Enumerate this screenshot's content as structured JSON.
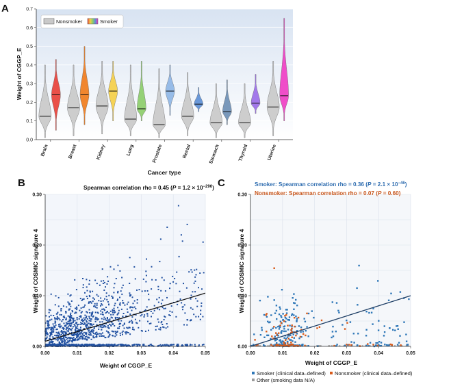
{
  "chart_data": [
    {
      "panel": "A",
      "type": "violin",
      "ylabel": "Weight of CGGP_E",
      "xlabel": "Cancer type",
      "ylim": [
        0,
        0.7
      ],
      "yticks": [
        "0.0",
        "0.1",
        "0.2",
        "0.3",
        "0.4",
        "0.5",
        "0.6",
        "0.7"
      ],
      "legend": {
        "nonsmoker": "Nonsmoker",
        "smoker": "Smoker"
      },
      "categories": [
        "Brain",
        "Breast",
        "Kidney",
        "Lung",
        "Prostate",
        "Rectal",
        "Stomach",
        "Thyroid",
        "Uterine"
      ],
      "series": [
        {
          "name": "Nonsmoker",
          "color": "#c9c9c9",
          "medians": [
            0.125,
            0.17,
            0.18,
            0.11,
            0.08,
            0.125,
            0.09,
            0.09,
            0.175
          ],
          "ranges": [
            [
              0.01,
              0.4
            ],
            [
              0.02,
              0.4
            ],
            [
              0.03,
              0.42
            ],
            [
              0.02,
              0.4
            ],
            [
              0.01,
              0.38
            ],
            [
              0.02,
              0.36
            ],
            [
              0.01,
              0.3
            ],
            [
              0.01,
              0.3
            ],
            [
              0.02,
              0.42
            ]
          ]
        },
        {
          "name": "Smoker",
          "colors": [
            "#e8413a",
            "#f07c1c",
            "#f5cf48",
            "#8ccd6a",
            "#8fb6e6",
            "#5d8fd6",
            "#6e8fb5",
            "#9b6de8",
            "#ef3fc4"
          ],
          "medians": [
            0.24,
            0.24,
            0.26,
            0.165,
            0.26,
            0.19,
            0.15,
            0.195,
            0.235
          ],
          "ranges": [
            [
              0.05,
              0.43
            ],
            [
              0.08,
              0.5
            ],
            [
              0.1,
              0.42
            ],
            [
              0.1,
              0.42
            ],
            [
              0.13,
              0.4
            ],
            [
              0.15,
              0.28
            ],
            [
              0.08,
              0.32
            ],
            [
              0.14,
              0.35
            ],
            [
              0.1,
              0.65
            ]
          ]
        }
      ]
    },
    {
      "panel": "B",
      "type": "scatter",
      "title": "Spearman correlation rho = 0.45 (P = 1.2 × 10⁻²⁹⁶)",
      "title_parts": {
        "rho": "Spearman correlation rho = 0.45 (",
        "p": "P",
        "val": " = 1.2 × 10",
        "exp": "−296",
        "close": ")"
      },
      "xlabel": "Weight of CGGP_E",
      "ylabel": "Weight of COSMIC signature 4",
      "xlim": [
        0,
        0.05
      ],
      "ylim": [
        0,
        0.3
      ],
      "xticks": [
        "0.00",
        "0.01",
        "0.02",
        "0.03",
        "0.04",
        "0.05"
      ],
      "yticks": [
        "0.00",
        "0.10",
        "0.20",
        "0.30"
      ],
      "color": "#1f4fa0",
      "n_points": 1400,
      "fit_line": {
        "x": [
          0,
          0.05
        ],
        "y": [
          0.01,
          0.105
        ]
      }
    },
    {
      "panel": "C",
      "type": "scatter",
      "smoker_label": {
        "text": "Smoker: Spearman correlation rho = 0.36 (",
        "p": "P",
        "val": " = 2.1 × 10",
        "exp": "−46",
        "close": ")"
      },
      "nonsmoker_label": {
        "text": "Nonsmoker: Spearman correlation rho = 0.07 (",
        "p": "P",
        "val": " = 0.60)"
      },
      "xlabel": "Weight of CGGP_E",
      "ylabel": "Weight of COSMIC signature 4",
      "xlim": [
        0,
        0.05
      ],
      "ylim": [
        0,
        0.3
      ],
      "xticks": [
        "0.00",
        "0.01",
        "0.02",
        "0.03",
        "0.04",
        "0.05"
      ],
      "yticks": [
        "0.00",
        "0.10",
        "0.20",
        "0.30"
      ],
      "fit_line": {
        "x": [
          0,
          0.05
        ],
        "y": [
          0.0,
          0.1
        ]
      },
      "legend": [
        {
          "label": "Smoker (clinical data–defined)",
          "color": "#2e77b8"
        },
        {
          "label": "Nonsmoker (clinical data–defined)",
          "color": "#d85a1a"
        },
        {
          "label": "Other (smoking data N/A)",
          "color": "#9a9a9a"
        }
      ],
      "series": [
        {
          "name": "Smoker",
          "color": "#2e77b8",
          "n_points": 260
        },
        {
          "name": "Nonsmoker",
          "color": "#d85a1a",
          "n_points": 90
        }
      ]
    }
  ],
  "colors": {
    "smoker_blue": "#2e77b8",
    "nonsmoker_orange": "#d85a1a",
    "stat_blue": "#2f6db0",
    "stat_orange": "#c8571d"
  }
}
